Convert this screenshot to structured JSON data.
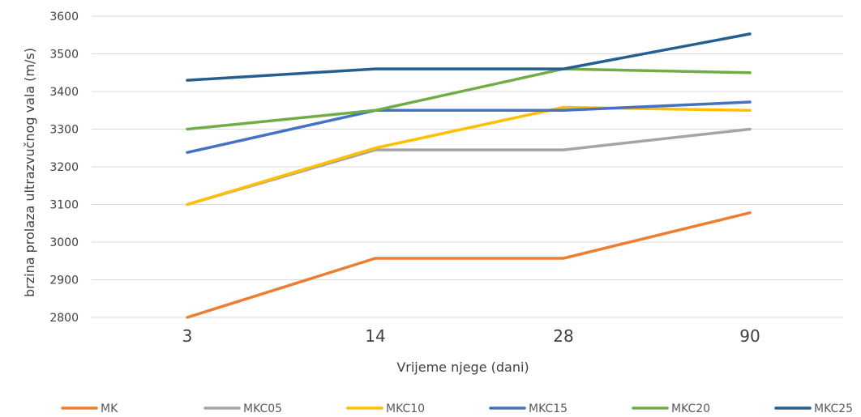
{
  "chart_data": {
    "type": "line",
    "xlabel": "Vrijeme njege (dani)",
    "ylabel": "brzina prolaza ultrazvučnog vala (m/s)",
    "categories": [
      "3",
      "14",
      "28",
      "90"
    ],
    "ylim": [
      2800,
      3600
    ],
    "yticks": [
      2800,
      2900,
      3000,
      3100,
      3200,
      3300,
      3400,
      3500,
      3600
    ],
    "grid": true,
    "legend_position": "bottom",
    "series": [
      {
        "name": "MK",
        "color": "#ED7D31",
        "values": [
          2800,
          2957,
          2957,
          3078
        ]
      },
      {
        "name": "MKC05",
        "color": "#A5A5A5",
        "values": [
          3100,
          3245,
          3245,
          3300
        ]
      },
      {
        "name": "MKC10",
        "color": "#FFC000",
        "values": [
          3100,
          3250,
          3358,
          3350
        ]
      },
      {
        "name": "MKC15",
        "color": "#4472C4",
        "values": [
          3238,
          3350,
          3350,
          3372
        ]
      },
      {
        "name": "MKC20",
        "color": "#70AD47",
        "values": [
          3300,
          3350,
          3460,
          3450
        ]
      },
      {
        "name": "MKC25",
        "color": "#255E91",
        "values": [
          3430,
          3460,
          3460,
          3553
        ]
      }
    ]
  }
}
